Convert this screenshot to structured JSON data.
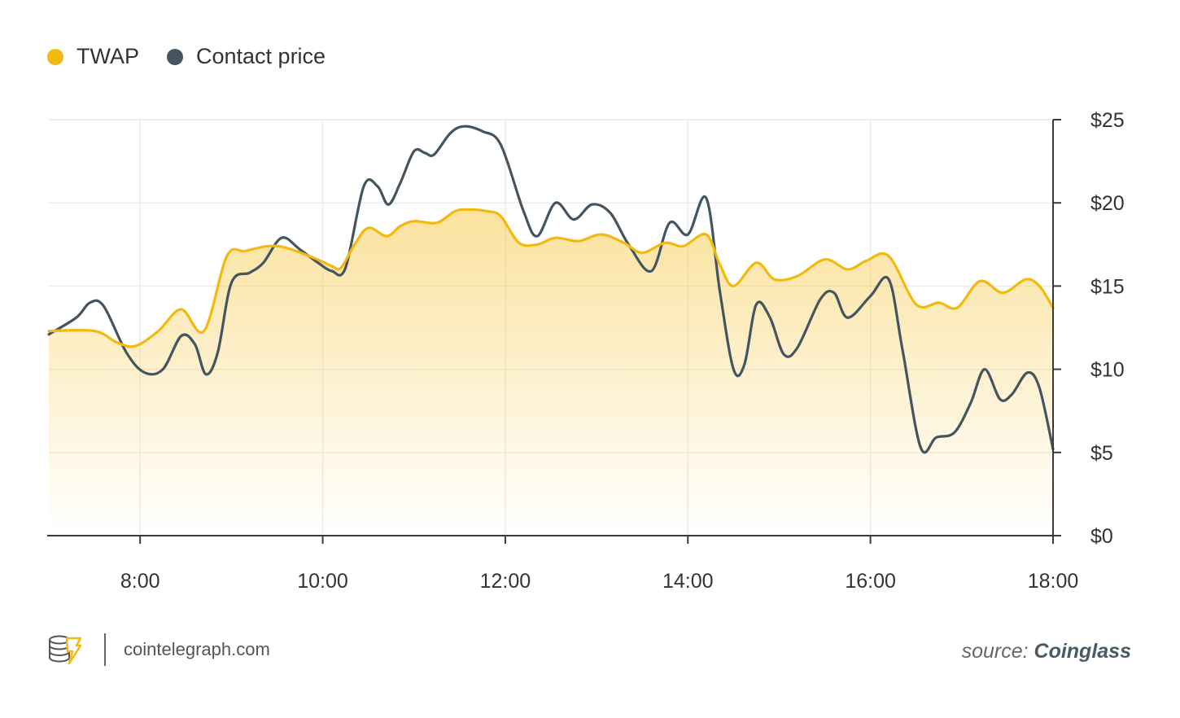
{
  "legend": {
    "twap_label": "TWAP",
    "contract_label": "Contact price"
  },
  "colors": {
    "twap": "#f2b90f",
    "contract": "#44555f",
    "grid": "#ececec",
    "axis": "#3a3a3a"
  },
  "footer": {
    "brand": "cointelegraph.com",
    "source_prefix": "source:",
    "source_name": "Coinglass"
  },
  "chart_data": {
    "type": "line",
    "xlabel": "",
    "ylabel": "",
    "x_unit": "hour",
    "xlim": [
      7,
      18
    ],
    "ylim": [
      0,
      25
    ],
    "x_ticks": [
      8,
      10,
      12,
      14,
      16,
      18
    ],
    "x_tick_labels": [
      "8:00",
      "10:00",
      "12:00",
      "14:00",
      "16:00",
      "18:00"
    ],
    "y_ticks": [
      0,
      5,
      10,
      15,
      20,
      25
    ],
    "y_tick_labels": [
      "$0",
      "$5",
      "$10",
      "$15",
      "$20",
      "$25"
    ],
    "y_axis_side": "right",
    "grid": true,
    "legend_position": "top-left",
    "series": [
      {
        "name": "TWAP",
        "color": "#f2b90f",
        "area_fill": true,
        "points": [
          [
            7.0,
            12.3
          ],
          [
            7.5,
            12.3
          ],
          [
            7.75,
            11.6
          ],
          [
            7.95,
            11.4
          ],
          [
            8.2,
            12.3
          ],
          [
            8.45,
            13.6
          ],
          [
            8.7,
            12.3
          ],
          [
            8.95,
            16.8
          ],
          [
            9.15,
            17.1
          ],
          [
            9.4,
            17.4
          ],
          [
            9.6,
            17.3
          ],
          [
            9.9,
            16.7
          ],
          [
            10.1,
            16.2
          ],
          [
            10.2,
            16.1
          ],
          [
            10.35,
            17.5
          ],
          [
            10.5,
            18.5
          ],
          [
            10.7,
            18.0
          ],
          [
            10.85,
            18.6
          ],
          [
            11.0,
            18.9
          ],
          [
            11.25,
            18.8
          ],
          [
            11.45,
            19.5
          ],
          [
            11.6,
            19.6
          ],
          [
            11.8,
            19.5
          ],
          [
            11.95,
            19.2
          ],
          [
            12.15,
            17.6
          ],
          [
            12.35,
            17.5
          ],
          [
            12.55,
            17.9
          ],
          [
            12.8,
            17.7
          ],
          [
            13.05,
            18.1
          ],
          [
            13.3,
            17.6
          ],
          [
            13.5,
            17.0
          ],
          [
            13.75,
            17.6
          ],
          [
            13.95,
            17.4
          ],
          [
            14.2,
            18.1
          ],
          [
            14.35,
            16.3
          ],
          [
            14.5,
            15.0
          ],
          [
            14.75,
            16.4
          ],
          [
            14.95,
            15.4
          ],
          [
            15.2,
            15.6
          ],
          [
            15.5,
            16.6
          ],
          [
            15.75,
            16.0
          ],
          [
            15.95,
            16.5
          ],
          [
            16.2,
            16.8
          ],
          [
            16.5,
            13.9
          ],
          [
            16.75,
            14.0
          ],
          [
            16.95,
            13.7
          ],
          [
            17.2,
            15.3
          ],
          [
            17.45,
            14.6
          ],
          [
            17.7,
            15.4
          ],
          [
            17.85,
            15.0
          ],
          [
            18.0,
            13.7
          ]
        ]
      },
      {
        "name": "Contact price",
        "color": "#44555f",
        "area_fill": false,
        "points": [
          [
            7.0,
            12.1
          ],
          [
            7.3,
            13.1
          ],
          [
            7.45,
            14.0
          ],
          [
            7.6,
            13.8
          ],
          [
            7.85,
            11.0
          ],
          [
            8.05,
            9.8
          ],
          [
            8.25,
            10.0
          ],
          [
            8.45,
            12.0
          ],
          [
            8.6,
            11.5
          ],
          [
            8.72,
            9.7
          ],
          [
            8.85,
            11.0
          ],
          [
            9.0,
            15.2
          ],
          [
            9.2,
            15.8
          ],
          [
            9.35,
            16.4
          ],
          [
            9.55,
            17.9
          ],
          [
            9.75,
            17.2
          ],
          [
            9.95,
            16.4
          ],
          [
            10.1,
            15.9
          ],
          [
            10.25,
            16.1
          ],
          [
            10.45,
            21.0
          ],
          [
            10.6,
            21.0
          ],
          [
            10.72,
            19.9
          ],
          [
            10.85,
            21.2
          ],
          [
            11.0,
            23.1
          ],
          [
            11.12,
            23.0
          ],
          [
            11.22,
            22.9
          ],
          [
            11.4,
            24.2
          ],
          [
            11.55,
            24.6
          ],
          [
            11.75,
            24.3
          ],
          [
            11.95,
            23.5
          ],
          [
            12.2,
            19.5
          ],
          [
            12.35,
            18.0
          ],
          [
            12.55,
            20.0
          ],
          [
            12.75,
            19.0
          ],
          [
            12.95,
            19.9
          ],
          [
            13.15,
            19.4
          ],
          [
            13.35,
            17.5
          ],
          [
            13.6,
            15.9
          ],
          [
            13.8,
            18.8
          ],
          [
            14.0,
            18.1
          ],
          [
            14.2,
            20.3
          ],
          [
            14.35,
            14.7
          ],
          [
            14.5,
            10.0
          ],
          [
            14.62,
            10.3
          ],
          [
            14.75,
            13.9
          ],
          [
            14.9,
            13.1
          ],
          [
            15.05,
            10.9
          ],
          [
            15.2,
            11.3
          ],
          [
            15.45,
            14.2
          ],
          [
            15.6,
            14.6
          ],
          [
            15.75,
            13.1
          ],
          [
            16.0,
            14.4
          ],
          [
            16.2,
            15.4
          ],
          [
            16.35,
            11.2
          ],
          [
            16.55,
            5.3
          ],
          [
            16.72,
            5.9
          ],
          [
            16.92,
            6.2
          ],
          [
            17.1,
            8.0
          ],
          [
            17.25,
            10.0
          ],
          [
            17.42,
            8.2
          ],
          [
            17.55,
            8.5
          ],
          [
            17.72,
            9.8
          ],
          [
            17.85,
            8.9
          ],
          [
            18.0,
            5.2
          ]
        ]
      }
    ]
  }
}
